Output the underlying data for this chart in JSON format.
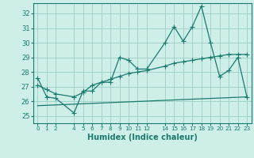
{
  "title": "",
  "xlabel": "Humidex (Indice chaleur)",
  "background_color": "#ceeee8",
  "grid_color": "#9dcdc6",
  "line_color": "#1a7a6e",
  "ylim": [
    24.5,
    32.7
  ],
  "xlim": [
    -0.5,
    23.5
  ],
  "y_ticks": [
    25,
    26,
    27,
    28,
    29,
    30,
    31,
    32
  ],
  "x_ticks": [
    0,
    1,
    2,
    4,
    5,
    6,
    7,
    8,
    9,
    10,
    11,
    12,
    14,
    15,
    16,
    17,
    18,
    19,
    20,
    21,
    22,
    23
  ],
  "x_tick_labels": [
    "0",
    "1",
    "2",
    "4",
    "5",
    "6",
    "7",
    "8",
    "9",
    "10",
    "11",
    "12",
    "14",
    "15",
    "16",
    "17",
    "18",
    "19",
    "20",
    "21",
    "22",
    "23"
  ],
  "line1_x": [
    0,
    1,
    2,
    4,
    5,
    6,
    7,
    8,
    9,
    10,
    11,
    12,
    14,
    15,
    16,
    17,
    18,
    19,
    20,
    21,
    22,
    23
  ],
  "line1_y": [
    27.6,
    26.3,
    26.2,
    25.2,
    26.7,
    26.7,
    27.3,
    27.3,
    29.0,
    28.8,
    28.2,
    28.2,
    30.0,
    31.1,
    30.1,
    31.1,
    32.5,
    30.0,
    27.7,
    28.1,
    29.0,
    26.3
  ],
  "line2_x": [
    0,
    1,
    2,
    4,
    5,
    6,
    7,
    8,
    9,
    10,
    11,
    12,
    14,
    15,
    16,
    17,
    18,
    19,
    20,
    21,
    22,
    23
  ],
  "line2_y": [
    27.1,
    26.8,
    26.5,
    26.3,
    26.6,
    27.1,
    27.3,
    27.5,
    27.7,
    27.9,
    28.0,
    28.1,
    28.4,
    28.6,
    28.7,
    28.8,
    28.9,
    29.0,
    29.1,
    29.2,
    29.2,
    29.2
  ],
  "line3_x": [
    0,
    23
  ],
  "line3_y": [
    25.7,
    26.3
  ],
  "marker": "+",
  "markersize": 4,
  "linewidth": 0.9
}
